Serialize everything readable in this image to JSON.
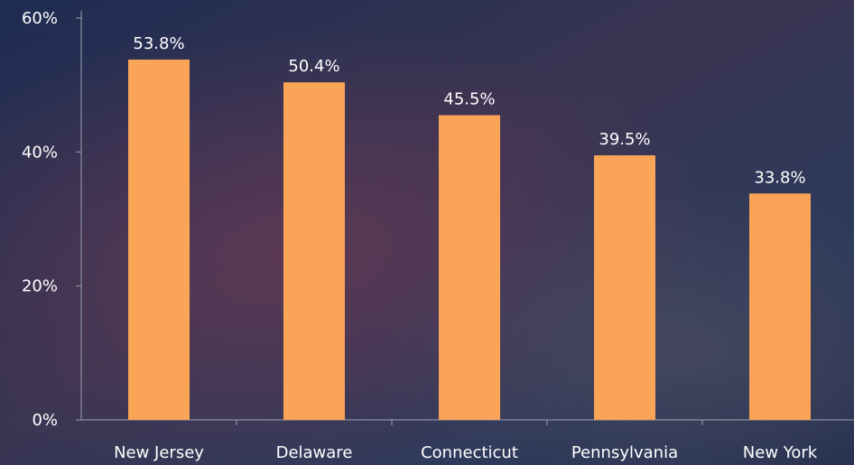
{
  "chart_data": {
    "type": "bar",
    "categories": [
      "New Jersey",
      "Delaware",
      "Connecticut",
      "Pennsylvania",
      "New York"
    ],
    "values": [
      53.8,
      50.4,
      45.5,
      39.5,
      33.8
    ],
    "value_labels": [
      "53.8%",
      "50.4%",
      "45.5%",
      "39.5%",
      "33.8%"
    ],
    "color": "#f9a457",
    "ylim": [
      0,
      60
    ],
    "yticks": [
      {
        "value": 0,
        "label": "0%"
      },
      {
        "value": 20,
        "label": "20%"
      },
      {
        "value": 40,
        "label": "40%"
      },
      {
        "value": 60,
        "label": "60%"
      }
    ],
    "grid": false
  }
}
